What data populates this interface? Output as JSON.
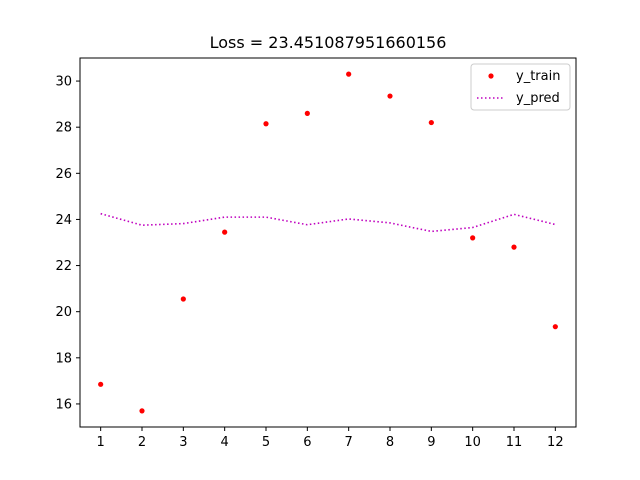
{
  "chart_data": {
    "type": "scatter",
    "title": "Loss = 23.451087951660156",
    "xlabel": "",
    "ylabel": "",
    "x": [
      1,
      2,
      3,
      4,
      5,
      6,
      7,
      8,
      9,
      10,
      11,
      12
    ],
    "xlim": [
      0.5,
      12.5
    ],
    "ylim": [
      15,
      31
    ],
    "xticks": [
      "1",
      "2",
      "3",
      "4",
      "5",
      "6",
      "7",
      "8",
      "9",
      "10",
      "11",
      "12"
    ],
    "yticks": [
      "16",
      "18",
      "20",
      "22",
      "24",
      "26",
      "28",
      "30"
    ],
    "grid": false,
    "legend_position": "top-right",
    "series": [
      {
        "name": "y_train",
        "style": "points",
        "color": "#ff0000",
        "values": [
          16.85,
          15.7,
          20.55,
          23.45,
          28.15,
          28.6,
          30.3,
          29.35,
          28.2,
          23.2,
          22.8,
          19.35
        ]
      },
      {
        "name": "y_pred",
        "style": "dotted-line",
        "color": "#bf00bf",
        "values": [
          24.25,
          23.75,
          23.82,
          24.1,
          24.1,
          23.77,
          24.02,
          23.85,
          23.48,
          23.65,
          24.22,
          23.78
        ]
      }
    ]
  }
}
